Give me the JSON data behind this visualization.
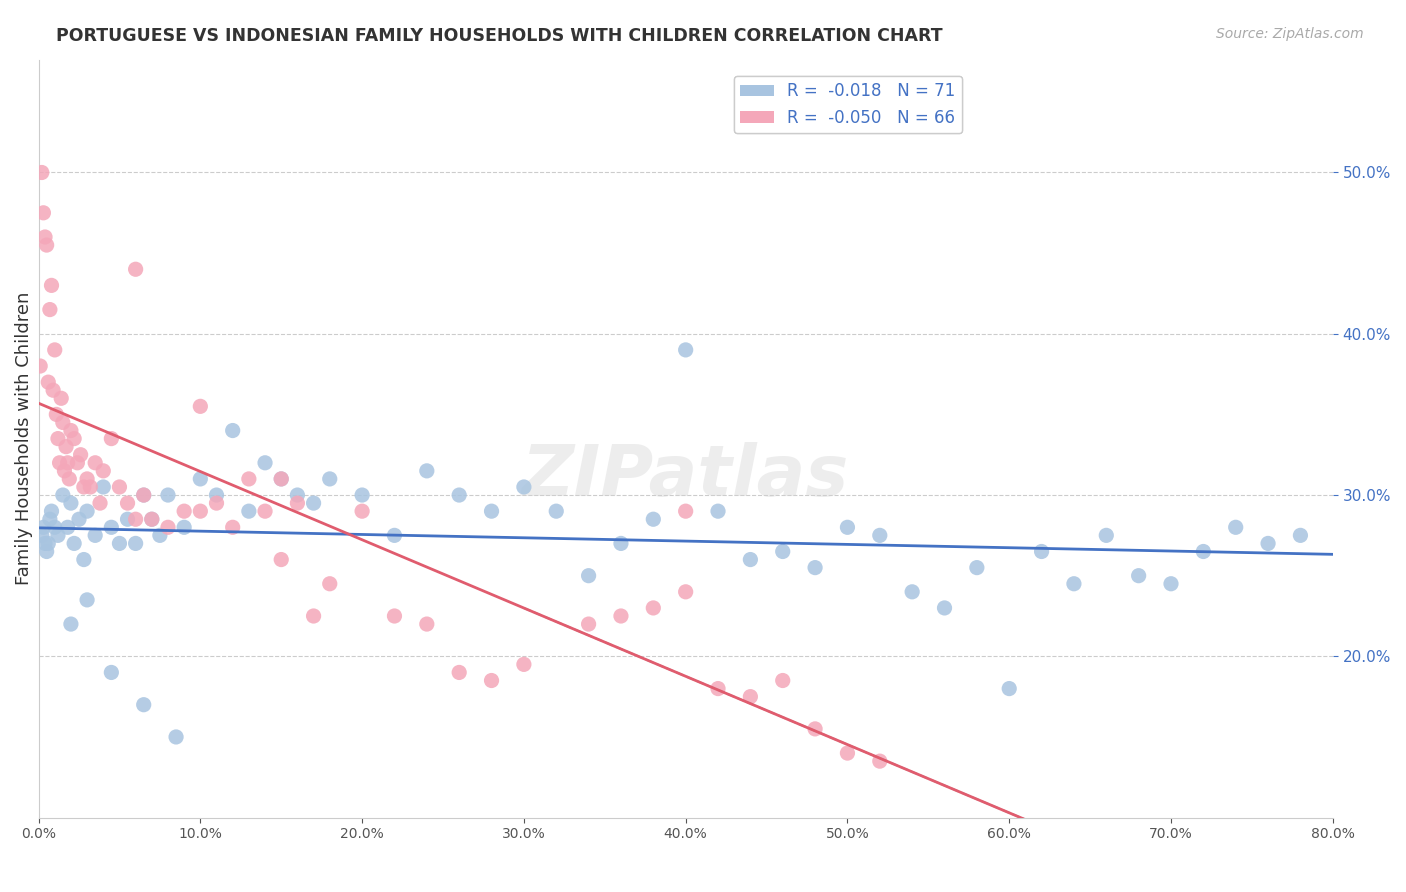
{
  "title": "PORTUGUESE VS INDONESIAN FAMILY HOUSEHOLDS WITH CHILDREN CORRELATION CHART",
  "source": "Source: ZipAtlas.com",
  "xlabel_bottom": "",
  "ylabel_left": "Family Households with Children",
  "x_tick_labels": [
    "0.0%",
    "10.0%",
    "20.0%",
    "30.0%",
    "40.0%",
    "50.0%",
    "60.0%",
    "70.0%",
    "80.0%"
  ],
  "x_tick_values": [
    0,
    10,
    20,
    30,
    40,
    50,
    60,
    70,
    80
  ],
  "y_tick_labels": [
    "20.0%",
    "30.0%",
    "40.0%",
    "50.0%"
  ],
  "y_tick_values": [
    20,
    30,
    40,
    50
  ],
  "xlim": [
    0,
    80
  ],
  "ylim": [
    10,
    57
  ],
  "portuguese_color": "#a8c4e0",
  "indonesian_color": "#f4a7b9",
  "portuguese_line_color": "#4472c4",
  "indonesian_line_color": "#e05c6e",
  "legend_r_portuguese": "R =  -0.018",
  "legend_n_portuguese": "N = 71",
  "legend_r_indonesian": "R =  -0.050",
  "legend_n_indonesian": "N = 66",
  "watermark": "ZIPatlas",
  "portuguese_x": [
    0.2,
    0.3,
    0.4,
    0.5,
    0.6,
    0.7,
    0.8,
    1.0,
    1.2,
    1.5,
    1.8,
    2.0,
    2.2,
    2.5,
    2.8,
    3.0,
    3.5,
    4.0,
    4.5,
    5.0,
    5.5,
    6.0,
    6.5,
    7.0,
    7.5,
    8.0,
    9.0,
    10.0,
    11.0,
    12.0,
    13.0,
    14.0,
    15.0,
    16.0,
    17.0,
    18.0,
    20.0,
    22.0,
    24.0,
    26.0,
    28.0,
    30.0,
    32.0,
    34.0,
    36.0,
    38.0,
    40.0,
    42.0,
    44.0,
    46.0,
    48.0,
    50.0,
    52.0,
    54.0,
    56.0,
    58.0,
    60.0,
    62.0,
    64.0,
    66.0,
    68.0,
    70.0,
    72.0,
    74.0,
    76.0,
    78.0,
    2.0,
    3.0,
    4.5,
    6.5,
    8.5
  ],
  "portuguese_y": [
    27.5,
    28.0,
    27.0,
    26.5,
    27.0,
    28.5,
    29.0,
    28.0,
    27.5,
    30.0,
    28.0,
    29.5,
    27.0,
    28.5,
    26.0,
    29.0,
    27.5,
    30.5,
    28.0,
    27.0,
    28.5,
    27.0,
    30.0,
    28.5,
    27.5,
    30.0,
    28.0,
    31.0,
    30.0,
    34.0,
    29.0,
    32.0,
    31.0,
    30.0,
    29.5,
    31.0,
    30.0,
    27.5,
    31.5,
    30.0,
    29.0,
    30.5,
    29.0,
    25.0,
    27.0,
    28.5,
    39.0,
    29.0,
    26.0,
    26.5,
    25.5,
    28.0,
    27.5,
    24.0,
    23.0,
    25.5,
    18.0,
    26.5,
    24.5,
    27.5,
    25.0,
    24.5,
    26.5,
    28.0,
    27.0,
    27.5,
    22.0,
    23.5,
    19.0,
    17.0,
    15.0
  ],
  "indonesian_x": [
    0.1,
    0.2,
    0.3,
    0.4,
    0.5,
    0.6,
    0.7,
    0.8,
    0.9,
    1.0,
    1.1,
    1.2,
    1.3,
    1.4,
    1.5,
    1.6,
    1.7,
    1.8,
    1.9,
    2.0,
    2.2,
    2.4,
    2.6,
    2.8,
    3.0,
    3.2,
    3.5,
    3.8,
    4.0,
    4.5,
    5.0,
    5.5,
    6.0,
    6.5,
    7.0,
    8.0,
    9.0,
    10.0,
    11.0,
    12.0,
    13.0,
    14.0,
    15.0,
    16.0,
    17.0,
    18.0,
    20.0,
    22.0,
    24.0,
    26.0,
    28.0,
    30.0,
    34.0,
    36.0,
    38.0,
    40.0,
    42.0,
    44.0,
    46.0,
    48.0,
    50.0,
    52.0,
    40.0,
    6.0,
    10.0,
    15.0
  ],
  "indonesian_y": [
    38.0,
    50.0,
    47.5,
    46.0,
    45.5,
    37.0,
    41.5,
    43.0,
    36.5,
    39.0,
    35.0,
    33.5,
    32.0,
    36.0,
    34.5,
    31.5,
    33.0,
    32.0,
    31.0,
    34.0,
    33.5,
    32.0,
    32.5,
    30.5,
    31.0,
    30.5,
    32.0,
    29.5,
    31.5,
    33.5,
    30.5,
    29.5,
    28.5,
    30.0,
    28.5,
    28.0,
    29.0,
    29.0,
    29.5,
    28.0,
    31.0,
    29.0,
    26.0,
    29.5,
    22.5,
    24.5,
    29.0,
    22.5,
    22.0,
    19.0,
    18.5,
    19.5,
    22.0,
    22.5,
    23.0,
    24.0,
    18.0,
    17.5,
    18.5,
    15.5,
    14.0,
    13.5,
    29.0,
    44.0,
    35.5,
    31.0
  ]
}
